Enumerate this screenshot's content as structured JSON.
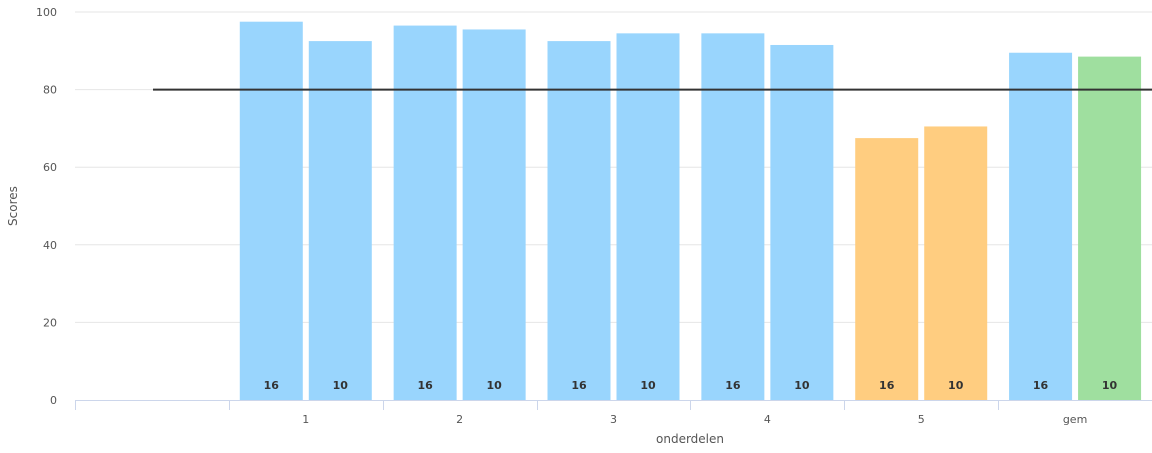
{
  "chart_data": {
    "type": "bar",
    "ylabel": "Scores",
    "xlabel": "onderdelen",
    "ylim": [
      0,
      100
    ],
    "yticks": [
      0,
      20,
      40,
      60,
      80,
      100
    ],
    "categories": [
      "",
      "1",
      "2",
      "3",
      "4",
      "5",
      "gem"
    ],
    "series": [
      {
        "values": [
          null,
          97.5,
          96.5,
          92.5,
          94.5,
          67.5,
          89.5
        ]
      },
      {
        "values": [
          null,
          92.5,
          95.5,
          94.5,
          91.5,
          70.5,
          88.5
        ]
      }
    ],
    "bar_labels": [
      [
        null,
        "16",
        "16",
        "16",
        "16",
        "16",
        "16"
      ],
      [
        null,
        "10",
        "10",
        "10",
        "10",
        "10",
        "10"
      ]
    ],
    "bar_colors": [
      [
        null,
        "#99d5fd",
        "#99d5fd",
        "#99d5fd",
        "#99d5fd",
        "#ffcd80",
        "#99d5fd"
      ],
      [
        null,
        "#99d5fd",
        "#99d5fd",
        "#99d5fd",
        "#99d5fd",
        "#ffcd80",
        "#9fdf9f"
      ]
    ],
    "reference_line": {
      "value": 80,
      "color": "#333333"
    },
    "grid": true,
    "colors": {
      "gridline": "#e6e6e6",
      "axis": "#ccd6eb",
      "text": "#555555"
    }
  }
}
